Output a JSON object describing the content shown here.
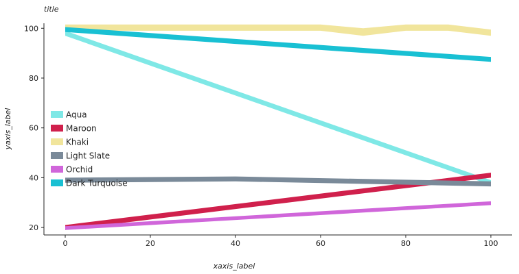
{
  "chart_data": {
    "type": "area",
    "title": "title",
    "xlabel": "xaxis_label",
    "ylabel": "yaxis_label",
    "xlim": [
      -5,
      105
    ],
    "ylim": [
      17,
      102
    ],
    "x_ticks": [
      0,
      20,
      40,
      60,
      80,
      100
    ],
    "y_ticks": [
      20,
      40,
      60,
      80,
      100
    ],
    "grid": false,
    "legend_position": "left",
    "series": [
      {
        "name": "Aqua",
        "color": "#7fe8e6",
        "x": [
          0,
          100
        ],
        "y_top": [
          99,
          39
        ],
        "y_bottom": [
          97,
          37
        ]
      },
      {
        "name": "Maroon",
        "color": "#d0204c",
        "x": [
          0,
          100
        ],
        "y_top": [
          21,
          42
        ],
        "y_bottom": [
          19,
          40
        ]
      },
      {
        "name": "Khaki",
        "color": "#f1e59c",
        "x": [
          0,
          20,
          40,
          60,
          70,
          80,
          90,
          100
        ],
        "y_top": [
          101.5,
          101.5,
          101.5,
          101.5,
          100,
          101.5,
          101.5,
          99.5
        ],
        "y_bottom": [
          99,
          99,
          99,
          99,
          97,
          99,
          99,
          97
        ]
      },
      {
        "name": "Light Slate",
        "color": "#7a8a99",
        "x": [
          0,
          40,
          100
        ],
        "y_top": [
          40,
          40.5,
          38.5
        ],
        "y_bottom": [
          38,
          38.5,
          36.5
        ]
      },
      {
        "name": "Orchid",
        "color": "#d066da",
        "x": [
          0,
          100
        ],
        "y_top": [
          20.5,
          30.5
        ],
        "y_bottom": [
          19,
          29
        ]
      },
      {
        "name": "Dark Turquoise",
        "color": "#19c0d3",
        "x": [
          0,
          100
        ],
        "y_top": [
          100.5,
          88.5
        ],
        "y_bottom": [
          98.5,
          86.5
        ]
      }
    ]
  }
}
